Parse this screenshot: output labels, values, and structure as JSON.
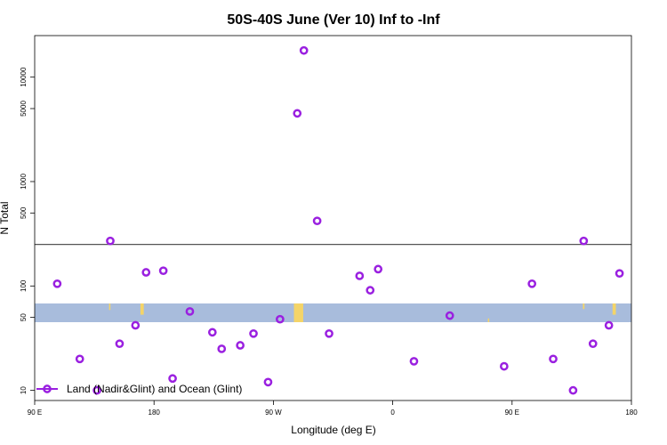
{
  "chart_data": {
    "type": "scatter",
    "title": "50S-40S June (Ver 10)   Inf to -Inf",
    "xlabel": "Longitude (deg E)",
    "ylabel": "N Total",
    "x_ticks": [
      {
        "value": 90,
        "label": "90 E"
      },
      {
        "value": 180,
        "label": "180"
      },
      {
        "value": 270,
        "label": "90 W"
      },
      {
        "value": 360,
        "label": "0"
      },
      {
        "value": 450,
        "label": "90 E"
      },
      {
        "value": 540,
        "label": "180"
      }
    ],
    "y_ticks": [
      {
        "value": 10,
        "label": "10"
      },
      {
        "value": 50,
        "label": "50"
      },
      {
        "value": 100,
        "label": "100"
      },
      {
        "value": 500,
        "label": "500"
      },
      {
        "value": 1000,
        "label": "1000"
      },
      {
        "value": 5000,
        "label": "5000"
      },
      {
        "value": 10000,
        "label": "10000"
      }
    ],
    "xlim": [
      90,
      540
    ],
    "y_scale": "log",
    "ylim": [
      8,
      25000
    ],
    "reference_line_y": 250,
    "land_band": {
      "y_top": 68,
      "y_bottom": 45,
      "color": "#a8bcdc",
      "land_color": "#f4d468"
    },
    "legend": {
      "label": "Land (Nadir&Glint) and Ocean (Glint)",
      "position": "bottom-left"
    },
    "marker_color": "#9a20e0",
    "series": [
      {
        "name": "Land (Nadir&Glint) and Ocean (Glint)",
        "points": [
          {
            "x": 107,
            "y": 105
          },
          {
            "x": 124,
            "y": 20
          },
          {
            "x": 137,
            "y": 10
          },
          {
            "x": 147,
            "y": 270
          },
          {
            "x": 154,
            "y": 28
          },
          {
            "x": 166,
            "y": 42
          },
          {
            "x": 174,
            "y": 135
          },
          {
            "x": 187,
            "y": 140
          },
          {
            "x": 194,
            "y": 13
          },
          {
            "x": 207,
            "y": 57
          },
          {
            "x": 224,
            "y": 36
          },
          {
            "x": 231,
            "y": 25
          },
          {
            "x": 245,
            "y": 27
          },
          {
            "x": 255,
            "y": 35
          },
          {
            "x": 266,
            "y": 12
          },
          {
            "x": 275,
            "y": 48
          },
          {
            "x": 288,
            "y": 4500
          },
          {
            "x": 293,
            "y": 18000
          },
          {
            "x": 303,
            "y": 420
          },
          {
            "x": 312,
            "y": 35
          },
          {
            "x": 335,
            "y": 125
          },
          {
            "x": 343,
            "y": 91
          },
          {
            "x": 349,
            "y": 145
          },
          {
            "x": 376,
            "y": 19
          },
          {
            "x": 403,
            "y": 52
          },
          {
            "x": 444,
            "y": 17
          },
          {
            "x": 465,
            "y": 105
          },
          {
            "x": 481,
            "y": 20
          },
          {
            "x": 496,
            "y": 10
          },
          {
            "x": 504,
            "y": 270
          },
          {
            "x": 511,
            "y": 28
          },
          {
            "x": 523,
            "y": 42
          },
          {
            "x": 531,
            "y": 132
          }
        ]
      }
    ]
  }
}
